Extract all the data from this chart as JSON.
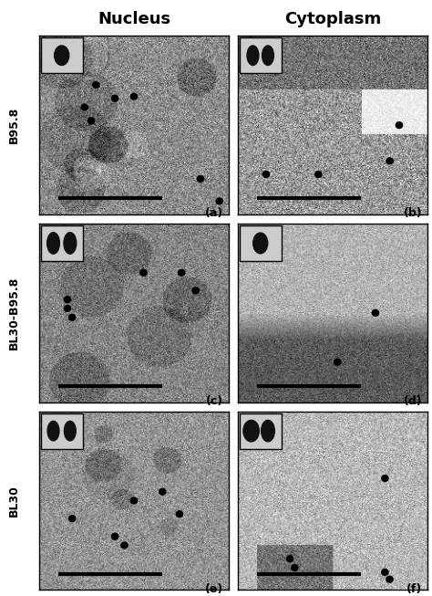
{
  "title_col1": "Nucleus",
  "title_col2": "Cytoplasm",
  "row_labels": [
    "B95.8",
    "BL30-B95.8",
    "BL30"
  ],
  "panel_labels": [
    "(a)",
    "(b)",
    "(c)",
    "(d)",
    "(e)",
    "(f)"
  ],
  "figsize": [
    4.74,
    6.53
  ],
  "dpi": 100,
  "background_color": "#ffffff",
  "border_color": "#000000",
  "title_fontsize": 13,
  "label_fontsize": 10,
  "row_label_fontsize": 9,
  "panel_label_fontsize": 9,
  "grid_rows": 3,
  "grid_cols": 2
}
